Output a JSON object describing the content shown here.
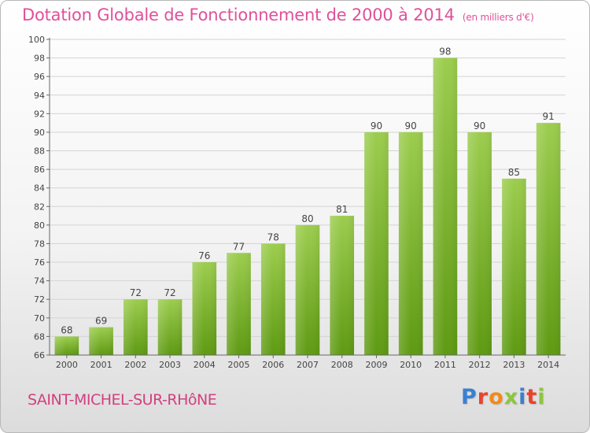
{
  "header": {
    "title": "Dotation Globale de Fonctionnement de 2000 à 2014",
    "unit": "(en milliers d'€)"
  },
  "footer": {
    "commune": "SAINT-MICHEL-SUR-RHôNE",
    "logo": "Proxiti"
  },
  "colors": {
    "title": "#e0509a",
    "bar_top": "#9ccd4e",
    "bar_bottom": "#5e9a12",
    "grid": "#d4d4d4"
  },
  "chart_data": {
    "type": "bar",
    "title": "Dotation Globale de Fonctionnement de 2000 à 2014",
    "categories": [
      "2000",
      "2001",
      "2002",
      "2003",
      "2004",
      "2005",
      "2006",
      "2007",
      "2008",
      "2009",
      "2010",
      "2011",
      "2012",
      "2013",
      "2014"
    ],
    "values": [
      68,
      69,
      72,
      72,
      76,
      77,
      78,
      80,
      81,
      90,
      90,
      98,
      90,
      85,
      91
    ],
    "ylim": [
      66,
      100
    ],
    "yticks": [
      66,
      68,
      70,
      72,
      74,
      76,
      78,
      80,
      82,
      84,
      86,
      88,
      90,
      92,
      94,
      96,
      98,
      100
    ],
    "grid": true,
    "data_labels": true
  }
}
